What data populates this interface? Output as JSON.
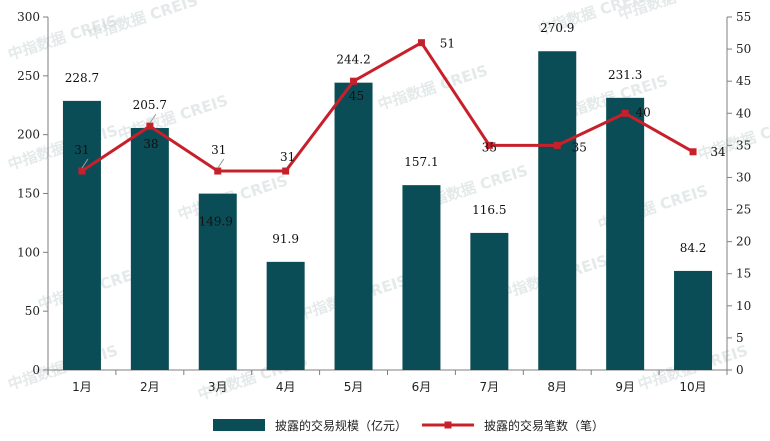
{
  "watermark": "中指数据 CREIS",
  "chart_data": {
    "type": "bar",
    "categories": [
      "1月",
      "2月",
      "3月",
      "4月",
      "5月",
      "6月",
      "7月",
      "8月",
      "9月",
      "10月"
    ],
    "series": [
      {
        "name": "披露的交易规模（亿元）",
        "type": "bar",
        "axis": "left",
        "color": "#0b4d56",
        "values": [
          228.7,
          205.7,
          149.9,
          91.9,
          244.2,
          157.1,
          116.5,
          270.9,
          231.3,
          84.2
        ]
      },
      {
        "name": "披露的交易笔数（笔）",
        "type": "line",
        "axis": "right",
        "color": "#c8202b",
        "values": [
          31,
          38,
          31,
          31,
          45,
          51,
          35,
          35,
          40,
          34
        ]
      }
    ],
    "ylim_left": [
      0,
      300
    ],
    "yticks_left": [
      0,
      50,
      100,
      150,
      200,
      250,
      300
    ],
    "ylim_right": [
      0,
      55
    ],
    "yticks_right": [
      0,
      5,
      10,
      15,
      20,
      25,
      30,
      35,
      40,
      45,
      50,
      55
    ],
    "legend_position": "bottom",
    "grid": false
  }
}
